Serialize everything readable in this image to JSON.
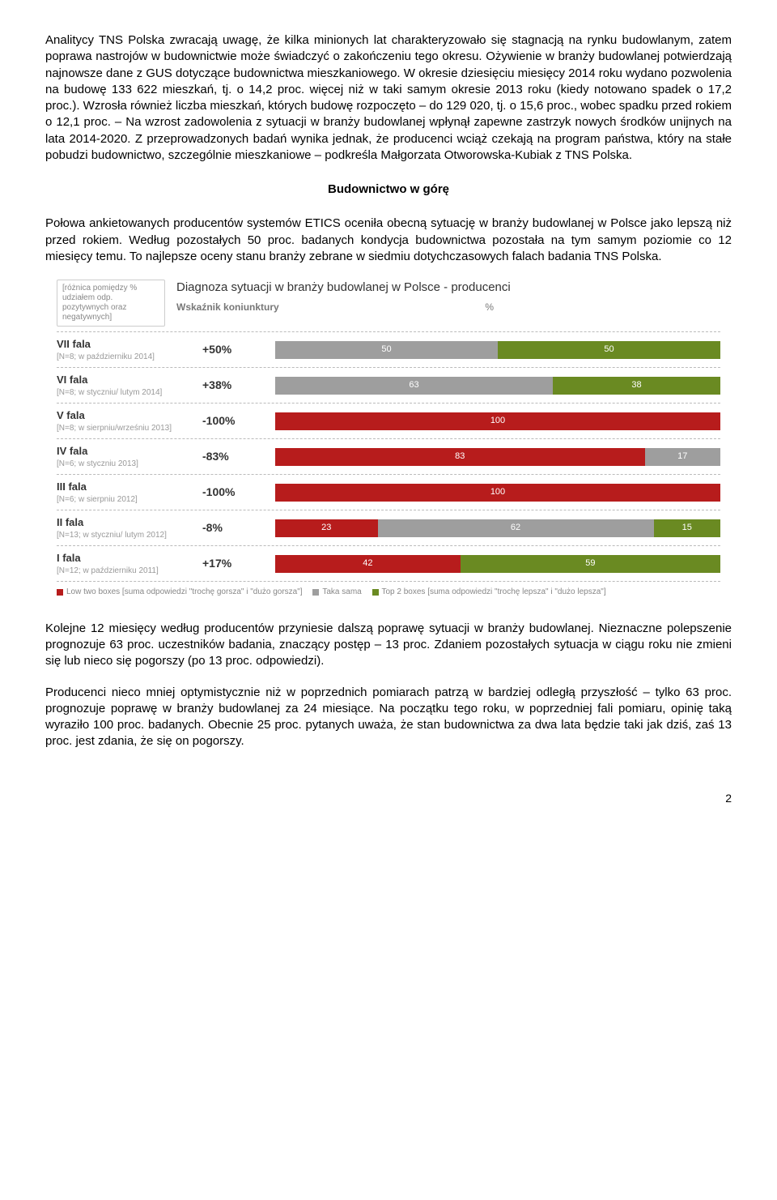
{
  "paragraphs": {
    "p1": "Analitycy TNS Polska zwracają uwagę, że kilka minionych lat charakteryzowało się stagnacją na rynku budowlanym, zatem poprawa nastrojów w budownictwie może świadczyć o zakończeniu tego okresu. Ożywienie w branży budowlanej potwierdzają najnowsze dane z GUS dotyczące budownictwa mieszkaniowego. W okresie dziesięciu miesięcy 2014 roku wydano pozwolenia na budowę 133 622 mieszkań, tj. o 14,2 proc. więcej niż w taki samym okresie 2013 roku (kiedy notowano spadek o 17,2 proc.). Wzrosła również liczba mieszkań, których budowę rozpoczęto – do 129 020, tj. o 15,6 proc., wobec spadku przed rokiem o 12,1 proc. – Na wzrost zadowolenia z sytuacji w branży budowlanej wpłynął zapewne zastrzyk nowych środków unijnych na lata 2014-2020. Z przeprowadzonych badań wynika jednak, że producenci wciąż czekają na program państwa, który na stałe pobudzi budownictwo, szczególnie mieszkaniowe – podkreśla Małgorzata Otworowska-Kubiak z TNS Polska.",
    "section_title": "Budownictwo w górę",
    "p2": "Połowa ankietowanych producentów systemów ETICS oceniła obecną sytuację w branży budowlanej w Polsce jako lepszą niż przed rokiem. Według pozostałych 50 proc. badanych kondycja budownictwa pozostała na tym samym poziomie co 12 miesięcy temu. To najlepsze oceny stanu branży zebrane w siedmiu dotychczasowych falach badania TNS Polska.",
    "p3": "Kolejne 12 miesięcy według producentów przyniesie dalszą poprawę sytuacji w branży budowlanej. Nieznaczne polepszenie prognozuje 63 proc. uczestników badania, znaczący postęp – 13 proc. Zdaniem pozostałych sytuacja w ciągu roku nie zmieni się lub nieco się pogorszy (po 13 proc. odpowiedzi).",
    "p4": "Producenci nieco mniej optymistycznie niż w poprzednich pomiarach patrzą w bardziej odległą przyszłość – tylko 63 proc. prognozuje poprawę w branży budowlanej za 24 miesiące. Na początku tego roku, w poprzedniej fali pomiaru, opinię taką wyraziło 100 proc. badanych. Obecnie 25 proc. pytanych uważa, że stan budownictwa za dwa lata będzie taki jak dziś, zaś 13 proc. jest zdania, że się on pogorszy."
  },
  "chart": {
    "note_box": "[różnica pomiędzy % udziałem odp. pozytywnych oraz negatywnych]",
    "title": "Diagnoza sytuacji w branży budowlanej w Polsce - producenci",
    "subheader_left": "Wskaźnik koniunktury",
    "subheader_right": "%",
    "colors": {
      "low": "#b71c1c",
      "same": "#9e9e9e",
      "top": "#6a8a22",
      "bg": "#ffffff",
      "dash": "#bbbbbb"
    },
    "legend": {
      "low": "Low two boxes [suma odpowiedzi \"trochę gorsza\" i \"dużo gorsza\"]",
      "same": "Taka sama",
      "top": "Top 2 boxes [suma odpowiedzi \"trochę lepsza\" i \"dużo lepsza\"]"
    },
    "waves": [
      {
        "name": "VII fala",
        "sub": "[N=8; w październiku 2014]",
        "indicator": "+50%",
        "segments": [
          {
            "k": "same",
            "v": 50
          },
          {
            "k": "top",
            "v": 50
          }
        ]
      },
      {
        "name": "VI fala",
        "sub": "[N=8; w styczniu/ lutym 2014]",
        "indicator": "+38%",
        "segments": [
          {
            "k": "same",
            "v": 63
          },
          {
            "k": "top",
            "v": 38
          }
        ]
      },
      {
        "name": "V fala",
        "sub": "[N=8; w sierpniu/wrześniu 2013]",
        "indicator": "-100%",
        "segments": [
          {
            "k": "low",
            "v": 100
          }
        ]
      },
      {
        "name": "IV fala",
        "sub": "[N=6; w styczniu 2013]",
        "indicator": "-83%",
        "segments": [
          {
            "k": "low",
            "v": 83
          },
          {
            "k": "same",
            "v": 17
          }
        ]
      },
      {
        "name": "III fala",
        "sub": "[N=6; w sierpniu 2012]",
        "indicator": "-100%",
        "segments": [
          {
            "k": "low",
            "v": 100
          }
        ]
      },
      {
        "name": "II fala",
        "sub": "[N=13; w styczniu/ lutym 2012]",
        "indicator": "-8%",
        "segments": [
          {
            "k": "low",
            "v": 23
          },
          {
            "k": "same",
            "v": 62
          },
          {
            "k": "top",
            "v": 15
          }
        ]
      },
      {
        "name": "I fala",
        "sub": "[N=12; w październiku 2011]",
        "indicator": "+17%",
        "segments": [
          {
            "k": "low",
            "v": 42
          },
          {
            "k": "top",
            "v": 59
          }
        ]
      }
    ]
  },
  "page_number": "2"
}
